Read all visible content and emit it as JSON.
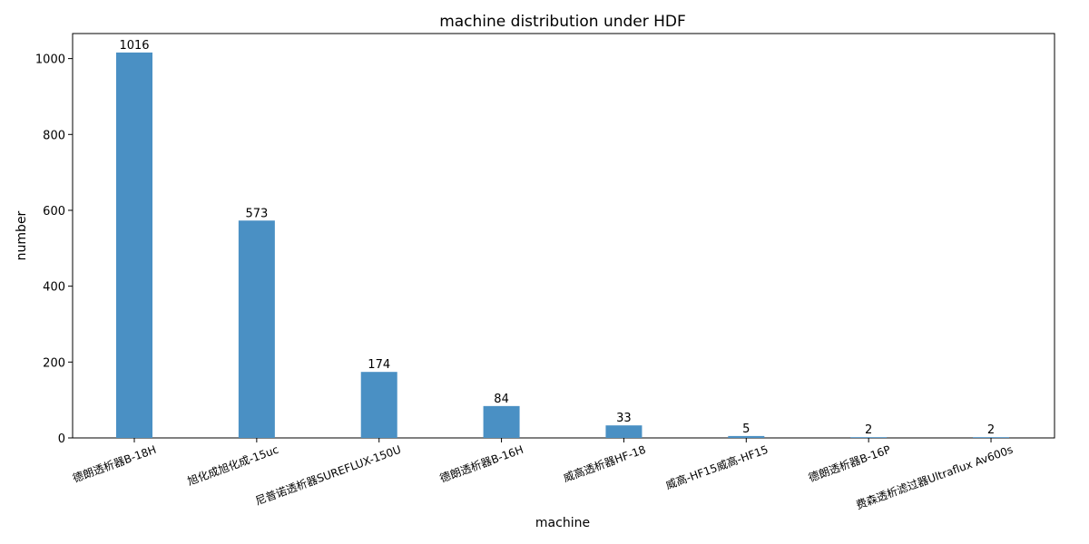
{
  "chart_data": {
    "type": "bar",
    "title": "machine distribution under HDF",
    "xlabel": "machine",
    "ylabel": "number",
    "categories": [
      "德朗透析器B-18H",
      "旭化成旭化成-15uc",
      "尼普诺透析器SUREFLUX-150U",
      "德朗透析器B-16H",
      "威高透析器HF-18",
      "威高-HF15威高-HF15",
      "德朗透析器B-16P",
      "费森透析滤过器Ultraflux Av600s"
    ],
    "values": [
      1016,
      573,
      174,
      84,
      33,
      5,
      2,
      2
    ],
    "data_labels": [
      "1016",
      "573",
      "174",
      "84",
      "33",
      "5",
      "2",
      "2"
    ],
    "ylim": [
      0,
      1066
    ],
    "yticks": [
      0,
      200,
      400,
      600,
      800,
      1000
    ],
    "grid": false,
    "bar_color": "#4a90c4"
  }
}
